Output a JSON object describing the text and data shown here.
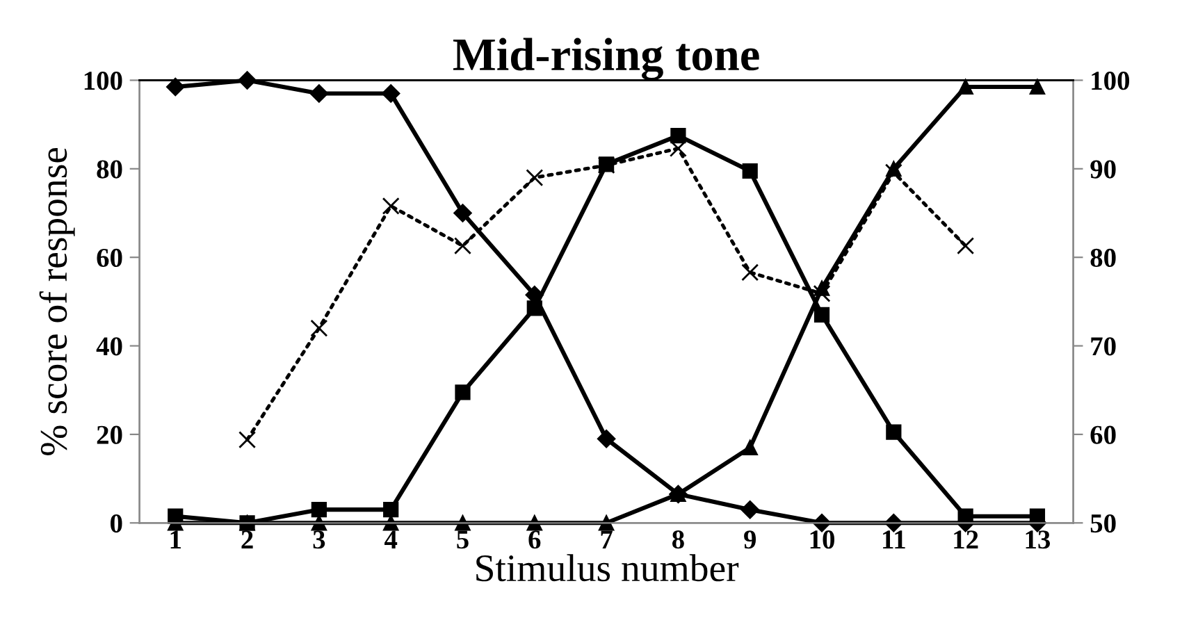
{
  "chart_data": {
    "type": "line",
    "title": "Mid-rising tone",
    "xlabel": "Stimulus number",
    "ylabel": "% score of response",
    "categories": [
      "1",
      "2",
      "3",
      "4",
      "5",
      "6",
      "7",
      "8",
      "9",
      "10",
      "11",
      "12",
      "13"
    ],
    "series": [
      {
        "color": "#000000",
        "marker": "diamond",
        "line_style": "solid",
        "values": [
          98.5,
          100,
          97,
          97,
          70,
          51.5,
          19,
          6.5,
          3,
          0,
          0,
          0,
          0
        ]
      },
      {
        "color": "#000000",
        "marker": "square",
        "line_style": "solid",
        "values": [
          1.5,
          0,
          3,
          3,
          29.5,
          48.5,
          81,
          87.5,
          79.5,
          47,
          20.5,
          1.5,
          1.5
        ]
      },
      {
        "color": "#000000",
        "marker": "triangle",
        "line_style": "solid",
        "values": [
          0,
          0,
          0,
          0,
          0,
          0,
          0,
          6.5,
          17,
          53,
          80,
          98.5,
          98.5
        ]
      },
      {
        "color": "#000000",
        "marker": "cross",
        "line_style": "dotted",
        "axis": "y2",
        "values": [
          null,
          59.4,
          72,
          85.8,
          81.3,
          89,
          90.4,
          92.3,
          78.3,
          75.9,
          89.6,
          81.3,
          null
        ]
      }
    ],
    "ylim": [
      0,
      100
    ],
    "yticks": [
      0,
      20,
      40,
      60,
      80,
      100
    ],
    "y2lim": [
      50,
      100
    ],
    "y2ticks": [
      50,
      60,
      70,
      80,
      90,
      100
    ],
    "grid": false,
    "legend": false
  }
}
